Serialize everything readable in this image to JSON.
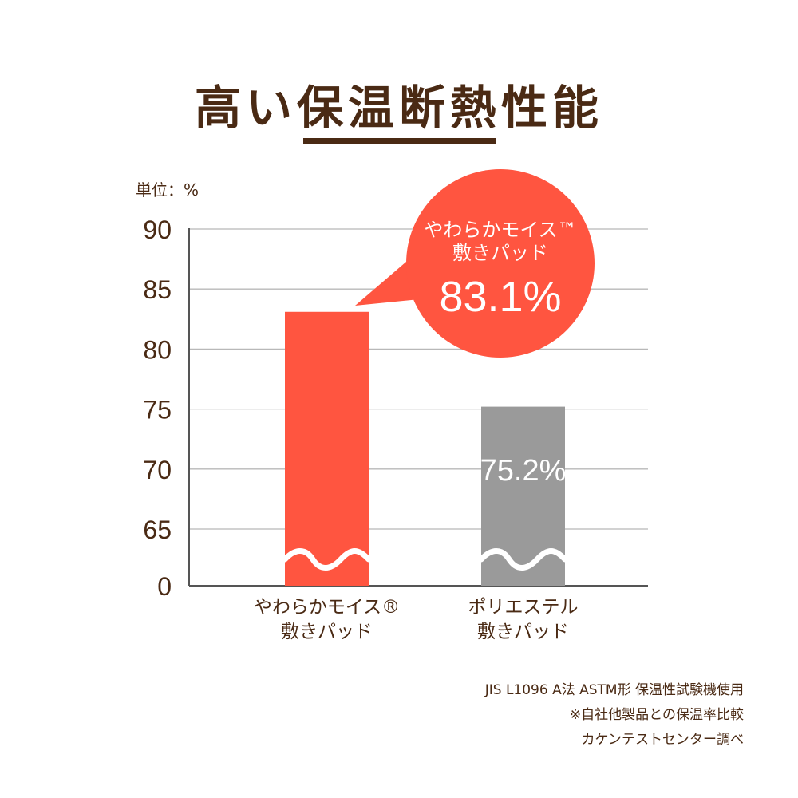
{
  "header": {
    "title": "高い保温断熱性能",
    "unit_label": "単位：%"
  },
  "colors": {
    "brown": "#4a2a14",
    "primary_bar": "#ff5540",
    "secondary_bar": "#9a9a9a",
    "grid": "#b8b8b8"
  },
  "chart_data": {
    "type": "bar",
    "categories": [
      [
        "やわらかモイス®",
        "敷きパッド"
      ],
      [
        "ポリエステル",
        "敷きパッド"
      ]
    ],
    "values": [
      83.1,
      75.2
    ],
    "y_ticks": [
      "90",
      "85",
      "80",
      "75",
      "70",
      "65",
      "0"
    ],
    "ylim": [
      60,
      90
    ],
    "axis_break": true,
    "grid": true,
    "callout": {
      "line1": "やわらかモイス™",
      "line2": "敷きパッド",
      "value": "83.1%"
    },
    "bar_labels": [
      "",
      "75.2%"
    ]
  },
  "footnotes": [
    "JIS L1096 A法 ASTM形 保温性試験機使用",
    "※自社他製品との保温率比較",
    "カケンテストセンター調べ"
  ]
}
